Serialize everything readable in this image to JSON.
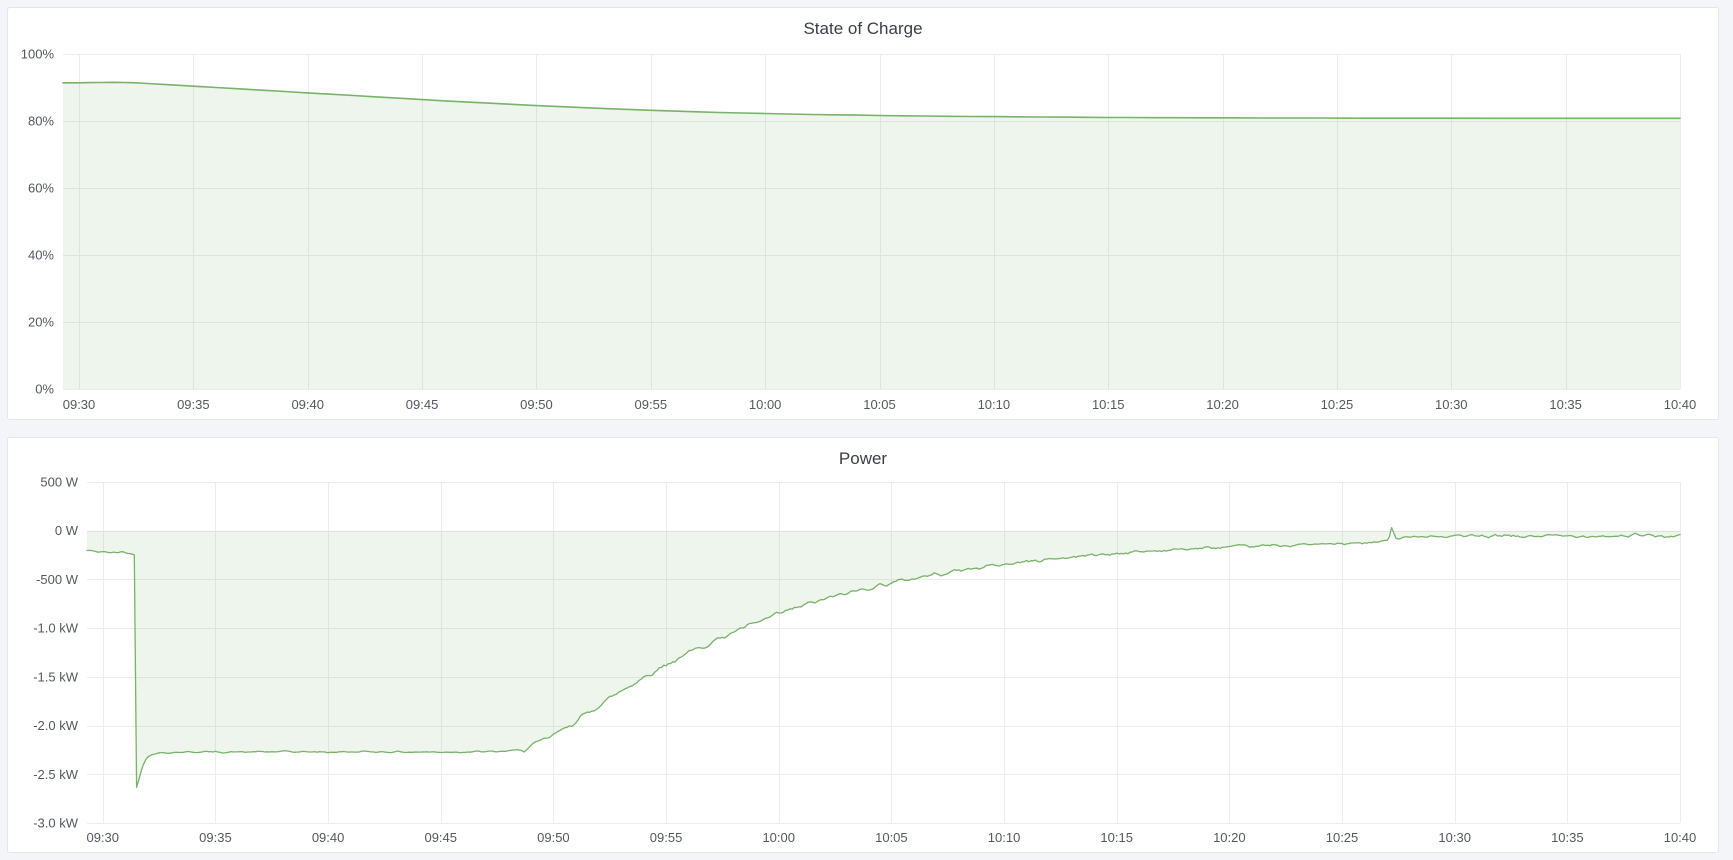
{
  "page": {
    "background": "#f4f5f9"
  },
  "colors": {
    "series_green": "#79b26a",
    "series_fill": "rgba(121,178,106,0.13)",
    "panel_bg": "#ffffff",
    "panel_border": "#e2e5e9",
    "grid": "#ececec",
    "axis_text": "#54585f",
    "title_text": "#3a3f45"
  },
  "panels": [
    {
      "title": "State of Charge"
    },
    {
      "title": "Power"
    }
  ],
  "chart_data": [
    {
      "type": "area",
      "title": "State of Charge",
      "ylabel": "",
      "xlabel": "",
      "unit": "percent",
      "grid": true,
      "legend": "none",
      "ylim": [
        0,
        100
      ],
      "x_range_minutes": [
        -0.7,
        70
      ],
      "x_ticks": [
        {
          "m": 0,
          "label": "09:30"
        },
        {
          "m": 5,
          "label": "09:35"
        },
        {
          "m": 10,
          "label": "09:40"
        },
        {
          "m": 15,
          "label": "09:45"
        },
        {
          "m": 20,
          "label": "09:50"
        },
        {
          "m": 25,
          "label": "09:55"
        },
        {
          "m": 30,
          "label": "10:00"
        },
        {
          "m": 35,
          "label": "10:05"
        },
        {
          "m": 40,
          "label": "10:10"
        },
        {
          "m": 45,
          "label": "10:15"
        },
        {
          "m": 50,
          "label": "10:20"
        },
        {
          "m": 55,
          "label": "10:25"
        },
        {
          "m": 60,
          "label": "10:30"
        },
        {
          "m": 65,
          "label": "10:35"
        },
        {
          "m": 70,
          "label": "10:40"
        }
      ],
      "y_ticks": [
        {
          "value": 100,
          "label": "100%"
        },
        {
          "value": 80,
          "label": "80%"
        },
        {
          "value": 60,
          "label": "60%"
        },
        {
          "value": 40,
          "label": "40%"
        },
        {
          "value": 20,
          "label": "20%"
        },
        {
          "value": 0,
          "label": "0%"
        }
      ],
      "series": [
        {
          "name": "State of Charge",
          "color": "#79b26a",
          "fill_opacity": 0.13,
          "fill_to": 0,
          "line_width": 1.6,
          "points": [
            [
              -0.7,
              91.4
            ],
            [
              0,
              91.4
            ],
            [
              0.5,
              91.45
            ],
            [
              1,
              91.5
            ],
            [
              1.5,
              91.55
            ],
            [
              2,
              91.5
            ],
            [
              2.5,
              91.4
            ],
            [
              3,
              91.2
            ],
            [
              4,
              90.8
            ],
            [
              5,
              90.4
            ],
            [
              6,
              90.0
            ],
            [
              7,
              89.6
            ],
            [
              8,
              89.2
            ],
            [
              9,
              88.8
            ],
            [
              10,
              88.4
            ],
            [
              11,
              88.0
            ],
            [
              12,
              87.6
            ],
            [
              13,
              87.2
            ],
            [
              14,
              86.8
            ],
            [
              15,
              86.4
            ],
            [
              16,
              86.0
            ],
            [
              17,
              85.65
            ],
            [
              18,
              85.3
            ],
            [
              19,
              84.95
            ],
            [
              20,
              84.6
            ],
            [
              21,
              84.3
            ],
            [
              22,
              84.0
            ],
            [
              23,
              83.7
            ],
            [
              24,
              83.45
            ],
            [
              25,
              83.2
            ],
            [
              26,
              82.95
            ],
            [
              27,
              82.75
            ],
            [
              28,
              82.55
            ],
            [
              29,
              82.4
            ],
            [
              30,
              82.25
            ],
            [
              31,
              82.1
            ],
            [
              32,
              81.95
            ],
            [
              33,
              81.85
            ],
            [
              34,
              81.75
            ],
            [
              35,
              81.65
            ],
            [
              36,
              81.55
            ],
            [
              37,
              81.5
            ],
            [
              38,
              81.4
            ],
            [
              39,
              81.35
            ],
            [
              40,
              81.3
            ],
            [
              41,
              81.25
            ],
            [
              42,
              81.2
            ],
            [
              43,
              81.15
            ],
            [
              44,
              81.1
            ],
            [
              45,
              81.05
            ],
            [
              46,
              81.05
            ],
            [
              47,
              81.0
            ],
            [
              48,
              81.0
            ],
            [
              49,
              80.95
            ],
            [
              50,
              80.95
            ],
            [
              52,
              80.9
            ],
            [
              54,
              80.9
            ],
            [
              56,
              80.85
            ],
            [
              58,
              80.85
            ],
            [
              60,
              80.85
            ],
            [
              62,
              80.8
            ],
            [
              64,
              80.8
            ],
            [
              66,
              80.8
            ],
            [
              68,
              80.8
            ],
            [
              70,
              80.8
            ]
          ]
        }
      ]
    },
    {
      "type": "area",
      "title": "Power",
      "ylabel": "",
      "xlabel": "",
      "unit": "watt",
      "grid": true,
      "legend": "none",
      "ylim": [
        -3000,
        500
      ],
      "x_range_minutes": [
        -0.7,
        70
      ],
      "x_ticks": [
        {
          "m": 0,
          "label": "09:30"
        },
        {
          "m": 5,
          "label": "09:35"
        },
        {
          "m": 10,
          "label": "09:40"
        },
        {
          "m": 15,
          "label": "09:45"
        },
        {
          "m": 20,
          "label": "09:50"
        },
        {
          "m": 25,
          "label": "09:55"
        },
        {
          "m": 30,
          "label": "10:00"
        },
        {
          "m": 35,
          "label": "10:05"
        },
        {
          "m": 40,
          "label": "10:10"
        },
        {
          "m": 45,
          "label": "10:15"
        },
        {
          "m": 50,
          "label": "10:20"
        },
        {
          "m": 55,
          "label": "10:25"
        },
        {
          "m": 60,
          "label": "10:30"
        },
        {
          "m": 65,
          "label": "10:35"
        },
        {
          "m": 70,
          "label": "10:40"
        }
      ],
      "y_ticks": [
        {
          "value": 500,
          "label": "500 W"
        },
        {
          "value": 0,
          "label": "0 W"
        },
        {
          "value": -500,
          "label": "-500 W"
        },
        {
          "value": -1000,
          "label": "-1.0 kW"
        },
        {
          "value": -1500,
          "label": "-1.5 kW"
        },
        {
          "value": -2000,
          "label": "-2.0 kW"
        },
        {
          "value": -2500,
          "label": "-2.5 kW"
        },
        {
          "value": -3000,
          "label": "-3.0 kW"
        }
      ],
      "series": [
        {
          "name": "Power",
          "color": "#79b26a",
          "fill_opacity": 0.13,
          "fill_to": 0,
          "line_width": 1.3,
          "trend": [
            [
              -0.7,
              -205
            ],
            [
              0,
              -218
            ],
            [
              0.4,
              -228
            ],
            [
              0.8,
              -215
            ],
            [
              1.1,
              -228
            ],
            [
              1.3,
              -238
            ],
            [
              1.42,
              -250
            ],
            [
              1.5,
              -2630
            ],
            [
              1.62,
              -2540
            ],
            [
              1.75,
              -2420
            ],
            [
              1.95,
              -2330
            ],
            [
              2.2,
              -2295
            ],
            [
              2.6,
              -2278
            ],
            [
              4,
              -2270
            ],
            [
              6,
              -2272
            ],
            [
              8,
              -2268
            ],
            [
              10,
              -2272
            ],
            [
              12,
              -2268
            ],
            [
              14,
              -2272
            ],
            [
              16,
              -2270
            ],
            [
              17.5,
              -2268
            ],
            [
              18.6,
              -2252
            ],
            [
              19,
              -2215
            ],
            [
              19.5,
              -2160
            ],
            [
              20,
              -2100
            ],
            [
              20.5,
              -2030
            ],
            [
              21,
              -1955
            ],
            [
              21.5,
              -1875
            ],
            [
              22,
              -1795
            ],
            [
              22.5,
              -1720
            ],
            [
              23,
              -1645
            ],
            [
              23.5,
              -1575
            ],
            [
              24,
              -1505
            ],
            [
              24.5,
              -1440
            ],
            [
              25,
              -1375
            ],
            [
              25.5,
              -1315
            ],
            [
              26,
              -1255
            ],
            [
              26.5,
              -1200
            ],
            [
              27,
              -1145
            ],
            [
              27.5,
              -1093
            ],
            [
              28,
              -1043
            ],
            [
              28.5,
              -995
            ],
            [
              29,
              -948
            ],
            [
              29.5,
              -902
            ],
            [
              30,
              -858
            ],
            [
              30.5,
              -816
            ],
            [
              31,
              -776
            ],
            [
              31.5,
              -740
            ],
            [
              32,
              -706
            ],
            [
              32.5,
              -674
            ],
            [
              33,
              -644
            ],
            [
              33.5,
              -615
            ],
            [
              34,
              -587
            ],
            [
              34.5,
              -560
            ],
            [
              35,
              -535
            ],
            [
              35.5,
              -511
            ],
            [
              36,
              -488
            ],
            [
              36.5,
              -466
            ],
            [
              37,
              -446
            ],
            [
              37.5,
              -427
            ],
            [
              38,
              -409
            ],
            [
              38.5,
              -392
            ],
            [
              39,
              -375
            ],
            [
              39.5,
              -360
            ],
            [
              40,
              -345
            ],
            [
              41,
              -318
            ],
            [
              42,
              -293
            ],
            [
              43,
              -270
            ],
            [
              44,
              -250
            ],
            [
              45,
              -232
            ],
            [
              46,
              -216
            ],
            [
              47,
              -202
            ],
            [
              48,
              -190
            ],
            [
              49,
              -179
            ],
            [
              50,
              -170
            ],
            [
              51,
              -161
            ],
            [
              52,
              -153
            ],
            [
              53,
              -146
            ],
            [
              54,
              -140
            ],
            [
              55,
              -134
            ],
            [
              56,
              -128
            ],
            [
              56.8,
              -118
            ],
            [
              57.05,
              -80
            ],
            [
              57.2,
              40
            ],
            [
              57.4,
              -70
            ],
            [
              58,
              -58
            ],
            [
              59,
              -64
            ],
            [
              60,
              -56
            ],
            [
              61,
              -62
            ],
            [
              62,
              -54
            ],
            [
              63,
              -60
            ],
            [
              64,
              -52
            ],
            [
              65,
              -57
            ],
            [
              66,
              -50
            ],
            [
              67,
              -55
            ],
            [
              68,
              -48
            ],
            [
              69,
              -54
            ],
            [
              70,
              -58
            ]
          ],
          "noise": {
            "seed": 42,
            "step_min": 0.1,
            "segments": [
              [
                -0.7,
                1.42,
                18
              ],
              [
                1.42,
                2.8,
                6
              ],
              [
                2.8,
                18.6,
                13
              ],
              [
                18.6,
                32,
                36
              ],
              [
                32,
                45,
                30
              ],
              [
                45,
                56.8,
                24
              ],
              [
                56.8,
                70,
                27
              ]
            ]
          }
        }
      ]
    }
  ]
}
